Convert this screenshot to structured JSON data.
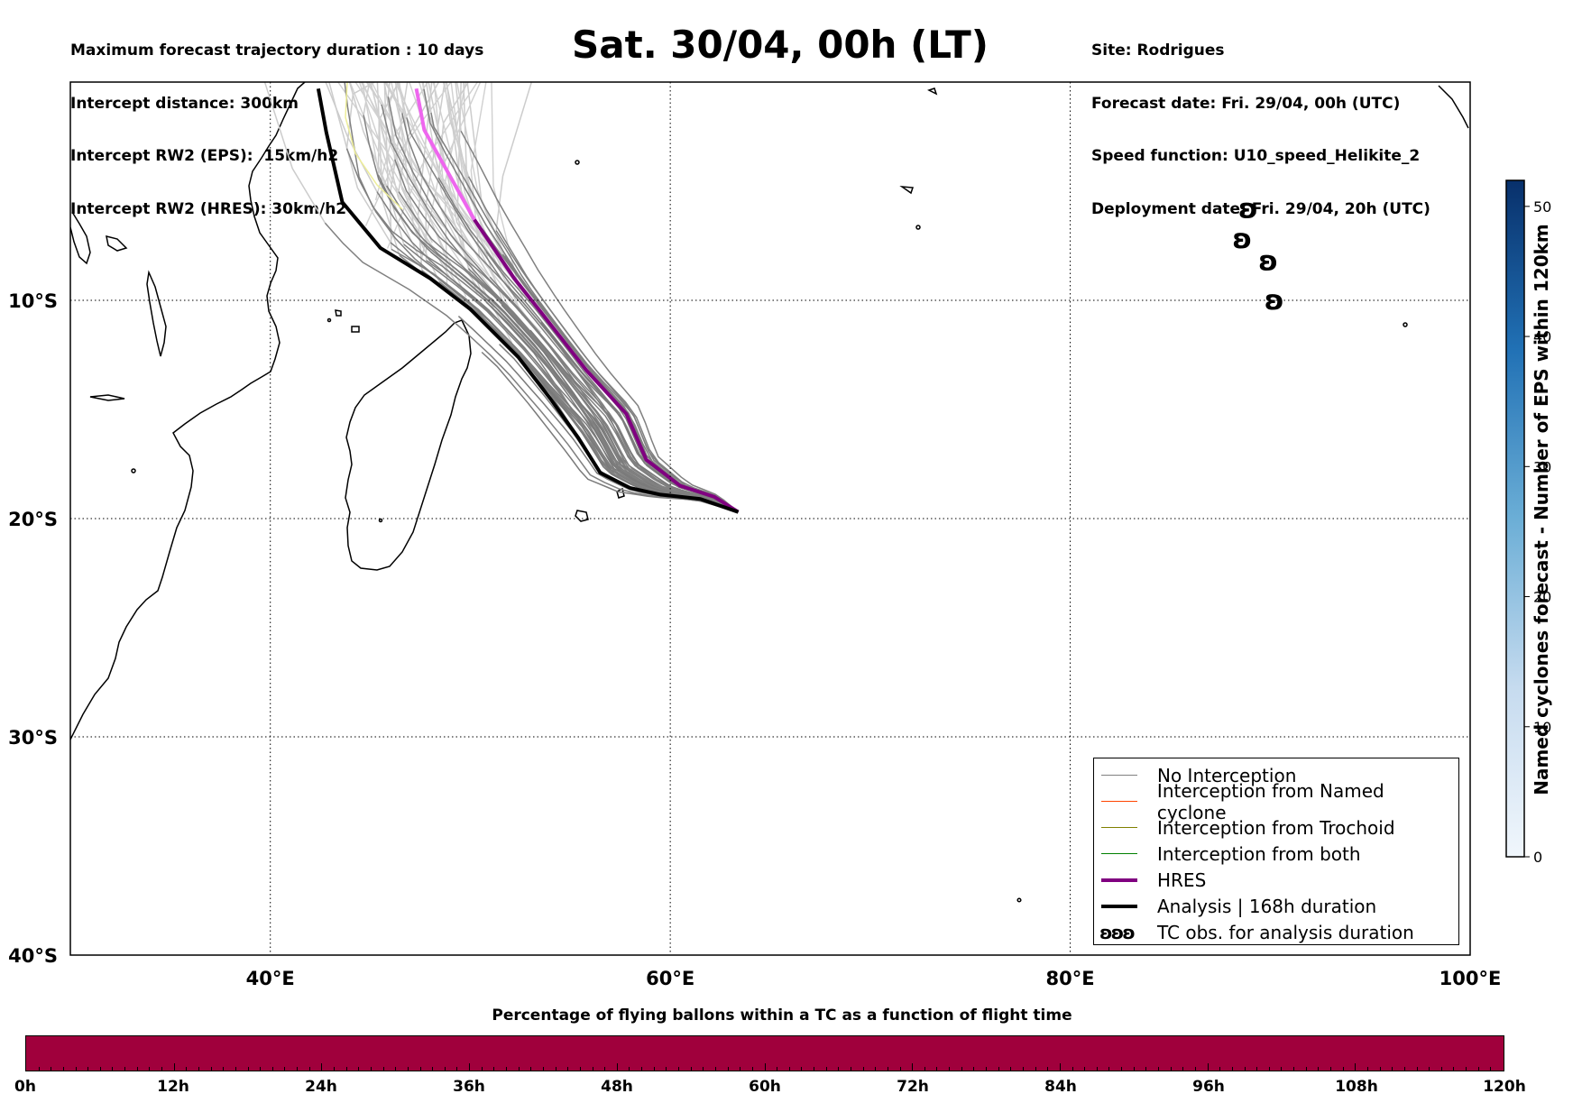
{
  "header_left": [
    "Maximum forecast trajectory duration : 10 days",
    "Intercept distance: 300km",
    "Intercept RW2 (EPS):  15km/h2",
    "Intercept RW2 (HRES): 30km/h2"
  ],
  "header_right": [
    "Site: Rodrigues",
    "Forecast date: Fri. 29/04, 00h (UTC)",
    "Speed function: U10_speed_Helikite_2",
    "Deployment date: Fri. 29/04, 20h (UTC)"
  ],
  "title": "Sat. 30/04, 00h (LT)",
  "map": {
    "lon_range": [
      30,
      100
    ],
    "lat_range": [
      -40,
      0
    ],
    "lon_ticks": [
      {
        "value": 40,
        "label": "40°E"
      },
      {
        "value": 60,
        "label": "60°E"
      },
      {
        "value": 80,
        "label": "80°E"
      },
      {
        "value": 100,
        "label": "100°E"
      }
    ],
    "lat_ticks": [
      {
        "value": -10,
        "label": "10°S"
      },
      {
        "value": -20,
        "label": "20°S"
      },
      {
        "value": -30,
        "label": "30°S"
      },
      {
        "value": -40,
        "label": "40°S"
      }
    ],
    "grid": "dotted",
    "launch_site": {
      "lon": 63.4,
      "lat": -19.7
    },
    "analysis_track": [
      [
        63.4,
        -19.7
      ],
      [
        61.5,
        -19.1
      ],
      [
        59.5,
        -18.9
      ],
      [
        58.0,
        -18.6
      ],
      [
        56.5,
        -17.9
      ],
      [
        55.4,
        -16.3
      ],
      [
        54.0,
        -14.5
      ],
      [
        52.4,
        -12.6
      ],
      [
        50.0,
        -10.4
      ],
      [
        48.0,
        -9.0
      ],
      [
        45.5,
        -7.6
      ],
      [
        43.6,
        -5.5
      ],
      [
        42.8,
        -2.3
      ],
      [
        42.4,
        -0.3
      ]
    ],
    "hres_track": [
      [
        63.4,
        -19.7
      ],
      [
        62.2,
        -19.0
      ],
      [
        60.5,
        -18.5
      ],
      [
        58.8,
        -17.3
      ],
      [
        57.8,
        -15.2
      ],
      [
        55.8,
        -13.2
      ],
      [
        53.5,
        -10.5
      ],
      [
        52.2,
        -9.0
      ],
      [
        50.2,
        -6.3
      ],
      [
        47.7,
        -2.2
      ],
      [
        47.3,
        -0.3
      ]
    ],
    "tc_observations": [
      {
        "lon": 88.9,
        "lat": -5.8
      },
      {
        "lon": 88.6,
        "lat": -7.2
      },
      {
        "lon": 89.9,
        "lat": -8.2
      },
      {
        "lon": 90.2,
        "lat": -10.0
      }
    ]
  },
  "legend": {
    "position": "lower-right",
    "items": [
      {
        "label": "No Interception",
        "color": "#808080",
        "width": 1.5
      },
      {
        "label": "Interception from Named cyclone",
        "color": "#ff4500",
        "width": 1.5
      },
      {
        "label": "Interception from Trochoid",
        "color": "#808000",
        "width": 1.5
      },
      {
        "label": "Interception from both",
        "color": "#008000",
        "width": 1.5
      },
      {
        "label": "HRES",
        "color": "#800080",
        "width": 4
      },
      {
        "label": "Analysis | 168h duration",
        "color": "#000000",
        "width": 4
      },
      {
        "label": "TC obs. for analysis duration",
        "symbol": "ʚʚʚ"
      }
    ]
  },
  "colorbar_vertical": {
    "label": "Named cyclones forecast - Number of EPS within 120km",
    "min": 0,
    "max": 52,
    "ticks": [
      0,
      10,
      20,
      30,
      40,
      50
    ],
    "color_low": "#deebf7",
    "color_high": "#08306b"
  },
  "colorbar_bottom": {
    "title": "Percentage of flying ballons within a TC as a function of flight time",
    "ticks": [
      "0h",
      "12h",
      "24h",
      "36h",
      "48h",
      "60h",
      "72h",
      "84h",
      "96h",
      "108h",
      "120h"
    ],
    "color": "#a0003c"
  }
}
